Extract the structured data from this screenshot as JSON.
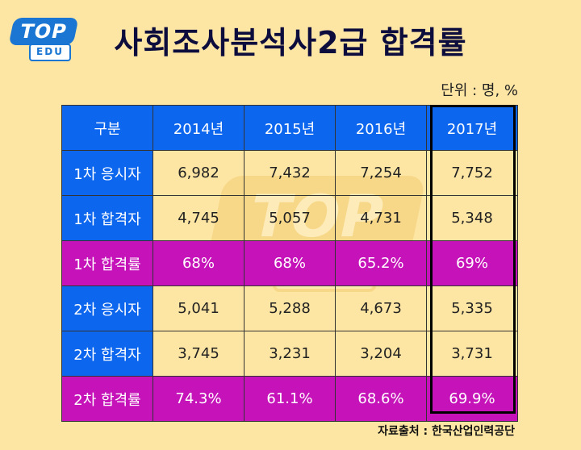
{
  "logo": {
    "top": "TOP",
    "edu": "EDU"
  },
  "title": "사회조사분석사2급 합격률",
  "unit_note": "단위 : 명, %",
  "table": {
    "headers": [
      "구분",
      "2014년",
      "2015년",
      "2016년",
      "2017년"
    ],
    "rows": [
      {
        "label": "1차 응시자",
        "values": [
          "6,982",
          "7,432",
          "7,254",
          "7,752"
        ],
        "kind": "count"
      },
      {
        "label": "1차 합격자",
        "values": [
          "4,745",
          "5,057",
          "4,731",
          "5,348"
        ],
        "kind": "count"
      },
      {
        "label": "1차 합격률",
        "values": [
          "68%",
          "68%",
          "65.2%",
          "69%"
        ],
        "kind": "rate"
      },
      {
        "label": "2차 응시자",
        "values": [
          "5,041",
          "5,288",
          "4,673",
          "5,335"
        ],
        "kind": "count"
      },
      {
        "label": "2차 합격자",
        "values": [
          "3,745",
          "3,231",
          "3,204",
          "3,731"
        ],
        "kind": "count"
      },
      {
        "label": "2차 합격률",
        "values": [
          "74.3%",
          "61.1%",
          "68.6%",
          "69.9%"
        ],
        "kind": "rate"
      }
    ]
  },
  "source": "자료출처 : 한국산업인력공단",
  "colors": {
    "background": "#fde5a3",
    "header_blue": "#0d66ee",
    "rate_magenta": "#c613b9",
    "title": "#0d0d3d"
  }
}
